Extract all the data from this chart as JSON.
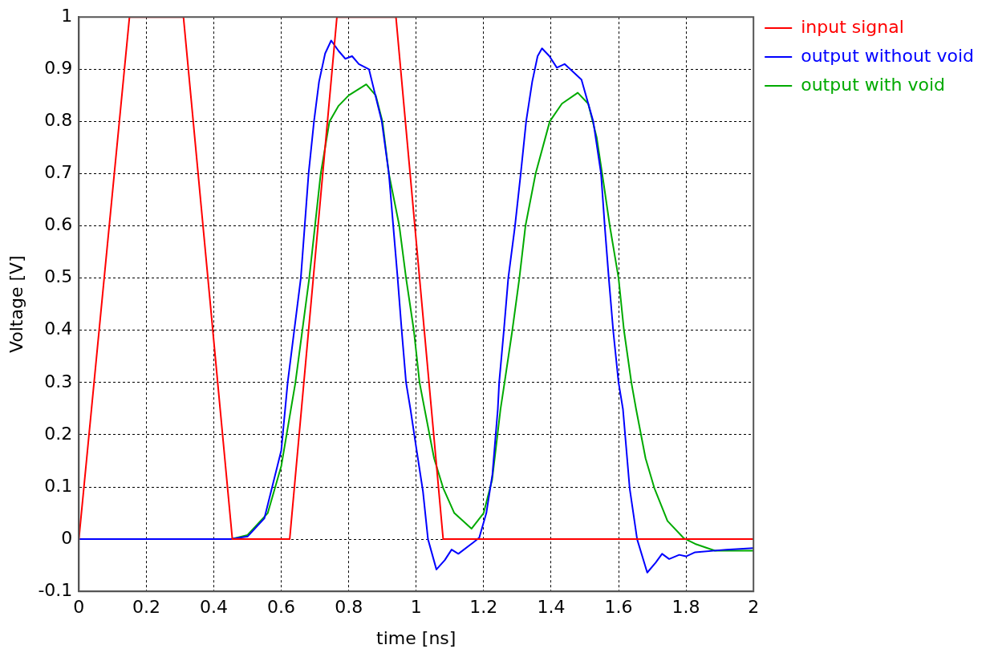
{
  "chart_data": {
    "type": "line",
    "xlabel": "time [ns]",
    "ylabel": "Voltage [V]",
    "xlim": [
      0,
      2
    ],
    "xticks": [
      0,
      0.2,
      0.4,
      0.6,
      0.8,
      1,
      1.2,
      1.4,
      1.6,
      1.8,
      2
    ],
    "ylim": [
      -0.1,
      1
    ],
    "yticks": [
      -0.1,
      0,
      0.1,
      0.2,
      0.3,
      0.4,
      0.5,
      0.6,
      0.7,
      0.8,
      0.9,
      1
    ],
    "grid": true,
    "legend": "top right",
    "marker": "none",
    "line_style": "solid",
    "series": [
      {
        "name": "input signal",
        "color": "#ff0000",
        "x": [
          0,
          0.15,
          0.31,
          0.455,
          0.625,
          0.765,
          0.94,
          1.08,
          2
        ],
        "values": [
          0,
          1,
          1,
          0,
          0,
          1,
          1,
          0,
          0
        ]
      },
      {
        "name": "output without void",
        "color": "#0000ff",
        "x": [
          0,
          0.45,
          0.5,
          0.55,
          0.6,
          0.619,
          0.658,
          0.681,
          0.697,
          0.712,
          0.73,
          0.748,
          0.77,
          0.79,
          0.81,
          0.83,
          0.86,
          0.898,
          0.919,
          0.932,
          0.945,
          0.957,
          0.97,
          0.983,
          1.0,
          1.02,
          1.035,
          1.06,
          1.085,
          1.105,
          1.125,
          1.17,
          1.187,
          1.208,
          1.226,
          1.242,
          1.246,
          1.26,
          1.273,
          1.293,
          1.31,
          1.326,
          1.344,
          1.36,
          1.373,
          1.395,
          1.417,
          1.44,
          1.465,
          1.49,
          1.525,
          1.548,
          1.559,
          1.571,
          1.584,
          1.6,
          1.613,
          1.633,
          1.655,
          1.685,
          1.71,
          1.729,
          1.75,
          1.78,
          1.8,
          1.827,
          1.92,
          2.0
        ],
        "values": [
          0,
          0,
          0.005,
          0.04,
          0.17,
          0.3,
          0.5,
          0.7,
          0.8,
          0.876,
          0.93,
          0.955,
          0.935,
          0.92,
          0.925,
          0.91,
          0.9,
          0.8,
          0.7,
          0.6,
          0.5,
          0.4,
          0.3,
          0.249,
          0.176,
          0.092,
          0,
          -0.058,
          -0.04,
          -0.02,
          -0.028,
          -0.006,
          0.003,
          0.05,
          0.124,
          0.249,
          0.3,
          0.4,
          0.5,
          0.6,
          0.7,
          0.8,
          0.876,
          0.925,
          0.94,
          0.925,
          0.903,
          0.91,
          0.895,
          0.88,
          0.8,
          0.7,
          0.6,
          0.5,
          0.4,
          0.3,
          0.249,
          0.097,
          0,
          -0.064,
          -0.045,
          -0.028,
          -0.038,
          -0.03,
          -0.033,
          -0.025,
          -0.02,
          -0.017
        ]
      },
      {
        "name": "output with void",
        "color": "#00aa00",
        "x": [
          0,
          0.45,
          0.5,
          0.56,
          0.6,
          0.642,
          0.683,
          0.717,
          0.743,
          0.77,
          0.8,
          0.852,
          0.88,
          0.9,
          0.919,
          0.95,
          0.97,
          0.993,
          1.01,
          1.025,
          1.053,
          1.08,
          1.113,
          1.164,
          1.2,
          1.225,
          1.25,
          1.262,
          1.285,
          1.306,
          1.324,
          1.354,
          1.396,
          1.432,
          1.479,
          1.51,
          1.535,
          1.556,
          1.574,
          1.6,
          1.616,
          1.638,
          1.652,
          1.68,
          1.706,
          1.745,
          1.793,
          1.827,
          1.886,
          2.0
        ],
        "values": [
          0,
          0,
          0.008,
          0.05,
          0.14,
          0.3,
          0.5,
          0.7,
          0.8,
          0.83,
          0.85,
          0.871,
          0.85,
          0.8,
          0.7,
          0.6,
          0.5,
          0.4,
          0.3,
          0.249,
          0.155,
          0.098,
          0.05,
          0.02,
          0.05,
          0.113,
          0.249,
          0.3,
          0.4,
          0.5,
          0.6,
          0.7,
          0.8,
          0.834,
          0.855,
          0.834,
          0.77,
          0.68,
          0.6,
          0.5,
          0.4,
          0.3,
          0.249,
          0.155,
          0.098,
          0.035,
          0.002,
          -0.009,
          -0.022,
          -0.022
        ]
      }
    ]
  }
}
